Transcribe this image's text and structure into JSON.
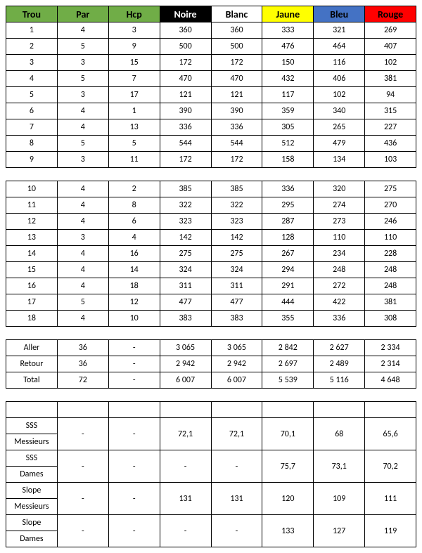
{
  "headers": {
    "trou": {
      "label": "Trou",
      "bg": "#70ad47"
    },
    "par": {
      "label": "Par",
      "bg": "#70ad47"
    },
    "hcp": {
      "label": "Hcp",
      "bg": "#70ad47"
    },
    "noire": {
      "label": "Noire",
      "bg": "#000000",
      "color": "#ffffff"
    },
    "blanc": {
      "label": "Blanc",
      "bg": "#ffffff"
    },
    "jaune": {
      "label": "Jaune",
      "bg": "#ffff00"
    },
    "bleu": {
      "label": "Bleu",
      "bg": "#4472c4"
    },
    "rouge": {
      "label": "Rouge",
      "bg": "#ff0000"
    }
  },
  "front9": [
    {
      "hole": "1",
      "par": "4",
      "hcp": "3",
      "noire": "360",
      "blanc": "360",
      "jaune": "333",
      "bleu": "321",
      "rouge": "269"
    },
    {
      "hole": "2",
      "par": "5",
      "hcp": "9",
      "noire": "500",
      "blanc": "500",
      "jaune": "476",
      "bleu": "464",
      "rouge": "407"
    },
    {
      "hole": "3",
      "par": "3",
      "hcp": "15",
      "noire": "172",
      "blanc": "172",
      "jaune": "150",
      "bleu": "116",
      "rouge": "102"
    },
    {
      "hole": "4",
      "par": "5",
      "hcp": "7",
      "noire": "470",
      "blanc": "470",
      "jaune": "432",
      "bleu": "406",
      "rouge": "381"
    },
    {
      "hole": "5",
      "par": "3",
      "hcp": "17",
      "noire": "121",
      "blanc": "121",
      "jaune": "117",
      "bleu": "102",
      "rouge": "94"
    },
    {
      "hole": "6",
      "par": "4",
      "hcp": "1",
      "noire": "390",
      "blanc": "390",
      "jaune": "359",
      "bleu": "340",
      "rouge": "315"
    },
    {
      "hole": "7",
      "par": "4",
      "hcp": "13",
      "noire": "336",
      "blanc": "336",
      "jaune": "305",
      "bleu": "265",
      "rouge": "227"
    },
    {
      "hole": "8",
      "par": "5",
      "hcp": "5",
      "noire": "544",
      "blanc": "544",
      "jaune": "512",
      "bleu": "479",
      "rouge": "436"
    },
    {
      "hole": "9",
      "par": "3",
      "hcp": "11",
      "noire": "172",
      "blanc": "172",
      "jaune": "158",
      "bleu": "134",
      "rouge": "103"
    }
  ],
  "back9": [
    {
      "hole": "10",
      "par": "4",
      "hcp": "2",
      "noire": "385",
      "blanc": "385",
      "jaune": "336",
      "bleu": "320",
      "rouge": "275"
    },
    {
      "hole": "11",
      "par": "4",
      "hcp": "8",
      "noire": "322",
      "blanc": "322",
      "jaune": "295",
      "bleu": "274",
      "rouge": "270"
    },
    {
      "hole": "12",
      "par": "4",
      "hcp": "6",
      "noire": "323",
      "blanc": "323",
      "jaune": "287",
      "bleu": "273",
      "rouge": "246"
    },
    {
      "hole": "13",
      "par": "3",
      "hcp": "4",
      "noire": "142",
      "blanc": "142",
      "jaune": "128",
      "bleu": "110",
      "rouge": "110"
    },
    {
      "hole": "14",
      "par": "4",
      "hcp": "16",
      "noire": "275",
      "blanc": "275",
      "jaune": "267",
      "bleu": "234",
      "rouge": "228"
    },
    {
      "hole": "15",
      "par": "4",
      "hcp": "14",
      "noire": "324",
      "blanc": "324",
      "jaune": "294",
      "bleu": "248",
      "rouge": "248"
    },
    {
      "hole": "16",
      "par": "4",
      "hcp": "18",
      "noire": "311",
      "blanc": "311",
      "jaune": "291",
      "bleu": "272",
      "rouge": "248"
    },
    {
      "hole": "17",
      "par": "5",
      "hcp": "12",
      "noire": "477",
      "blanc": "477",
      "jaune": "444",
      "bleu": "422",
      "rouge": "381"
    },
    {
      "hole": "18",
      "par": "4",
      "hcp": "10",
      "noire": "383",
      "blanc": "383",
      "jaune": "355",
      "bleu": "336",
      "rouge": "308"
    }
  ],
  "totals": [
    {
      "label": "Aller",
      "par": "36",
      "hcp": "-",
      "noire": "3 065",
      "blanc": "3 065",
      "jaune": "2 842",
      "bleu": "2 627",
      "rouge": "2 334"
    },
    {
      "label": "Retour",
      "par": "36",
      "hcp": "-",
      "noire": "2 942",
      "blanc": "2 942",
      "jaune": "2 697",
      "bleu": "2 489",
      "rouge": "2 314"
    },
    {
      "label": "Total",
      "par": "72",
      "hcp": "-",
      "noire": "6 007",
      "blanc": "6 007",
      "jaune": "5 539",
      "bleu": "5 116",
      "rouge": "4 648"
    }
  ],
  "stats": [
    {
      "label1": "SSS",
      "label2": "Messieurs",
      "par": "-",
      "hcp": "-",
      "noire": "72,1",
      "blanc": "72,1",
      "jaune": "70,1",
      "bleu": "68",
      "rouge": "65,6"
    },
    {
      "label1": "SSS",
      "label2": "Dames",
      "par": "-",
      "hcp": "-",
      "noire": "-",
      "blanc": "-",
      "jaune": "75,7",
      "bleu": "73,1",
      "rouge": "70,2"
    },
    {
      "label1": "Slope",
      "label2": "Messieurs",
      "par": "-",
      "hcp": "-",
      "noire": "131",
      "blanc": "131",
      "jaune": "120",
      "bleu": "109",
      "rouge": "111"
    },
    {
      "label1": "Slope",
      "label2": "Dames",
      "par": "-",
      "hcp": "-",
      "noire": "-",
      "blanc": "-",
      "jaune": "133",
      "bleu": "127",
      "rouge": "119"
    }
  ]
}
